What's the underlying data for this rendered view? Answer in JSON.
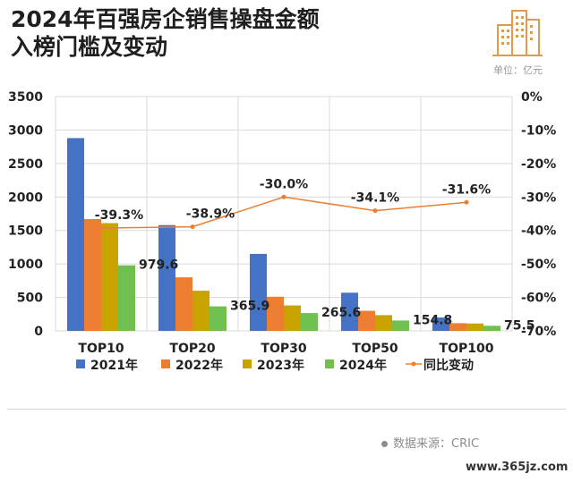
{
  "header": {
    "title_line1": "2024年百强房企销售操盘金额",
    "title_line2": "入榜门槛及变动",
    "unit": "单位：亿元"
  },
  "footer": {
    "source": "数据来源：CRIC",
    "watermark": "www.365jz.com"
  },
  "colors": {
    "2021": "#4472c4",
    "2022": "#ed7d31",
    "2023": "#c9a400",
    "2024": "#70c050",
    "yoy": "#ed7d31",
    "logo": "#e09a4e"
  },
  "chart_data": {
    "type": "bar",
    "categories": [
      "TOP10",
      "TOP20",
      "TOP30",
      "TOP50",
      "TOP100"
    ],
    "series": [
      {
        "name": "2021年",
        "values": [
          2880,
          1580,
          1150,
          570,
          200
        ]
      },
      {
        "name": "2022年",
        "values": [
          1670,
          800,
          510,
          300,
          115
        ]
      },
      {
        "name": "2023年",
        "values": [
          1610,
          600,
          380,
          235,
          110
        ]
      },
      {
        "name": "2024年",
        "values": [
          979.6,
          365.9,
          265.6,
          154.8,
          75.5
        ],
        "data_labels": [
          "979.6",
          "365.9",
          "265.6",
          "154.8",
          "75.5"
        ]
      }
    ],
    "line_series": {
      "name": "同比变动",
      "values": [
        -39.3,
        -38.9,
        -30.0,
        -34.1,
        -31.6
      ],
      "labels": [
        "-39.3%",
        "-38.9%",
        "-30.0%",
        "-34.1%",
        "-31.6%"
      ],
      "axis": "right"
    },
    "y_left": {
      "min": 0,
      "max": 3500,
      "ticks": [
        "0",
        "500",
        "1000",
        "1500",
        "2000",
        "2500",
        "3000",
        "3500"
      ]
    },
    "y_right": {
      "min": -70,
      "max": 0,
      "ticks": [
        "0%",
        "-10%",
        "-20%",
        "-30%",
        "-40%",
        "-50%",
        "-60%",
        "-70%"
      ]
    },
    "legend_labels": [
      "2021年",
      "2022年",
      "2023年",
      "2024年",
      "同比变动"
    ],
    "legend_position": "bottom",
    "grid": true
  }
}
